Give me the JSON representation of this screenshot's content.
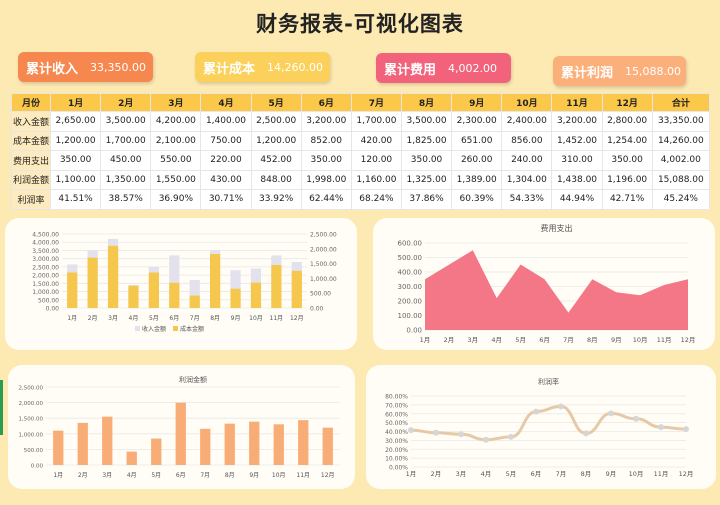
{
  "title": "财务报表-可视化图表",
  "kpis": [
    {
      "label": "累计收入",
      "value": "33,350.00"
    },
    {
      "label": "累计成本",
      "value": "14,260.00"
    },
    {
      "label": "累计费用",
      "value": "4,002.00"
    },
    {
      "label": "累计利润",
      "value": "15,088.00"
    }
  ],
  "table": {
    "headers": [
      "月份",
      "1月",
      "2月",
      "3月",
      "4月",
      "5月",
      "6月",
      "7月",
      "8月",
      "9月",
      "10月",
      "11月",
      "12月",
      "合计"
    ],
    "rows": [
      {
        "label": "收入金额",
        "cells": [
          "2,650.00",
          "3,500.00",
          "4,200.00",
          "1,400.00",
          "2,500.00",
          "3,200.00",
          "1,700.00",
          "3,500.00",
          "2,300.00",
          "2,400.00",
          "3,200.00",
          "2,800.00",
          "33,350.00"
        ]
      },
      {
        "label": "成本金额",
        "cells": [
          "1,200.00",
          "1,700.00",
          "2,100.00",
          "750.00",
          "1,200.00",
          "852.00",
          "420.00",
          "1,825.00",
          "651.00",
          "856.00",
          "1,452.00",
          "1,254.00",
          "14,260.00"
        ]
      },
      {
        "label": "费用支出",
        "cells": [
          "350.00",
          "450.00",
          "550.00",
          "220.00",
          "452.00",
          "350.00",
          "120.00",
          "350.00",
          "260.00",
          "240.00",
          "310.00",
          "350.00",
          "4,002.00"
        ]
      },
      {
        "label": "利润金额",
        "cells": [
          "1,100.00",
          "1,350.00",
          "1,550.00",
          "430.00",
          "848.00",
          "1,998.00",
          "1,160.00",
          "1,325.00",
          "1,389.00",
          "1,304.00",
          "1,438.00",
          "1,196.00",
          "15,088.00"
        ]
      },
      {
        "label": "利润率",
        "cells": [
          "41.51%",
          "38.57%",
          "36.90%",
          "30.71%",
          "33.92%",
          "62.44%",
          "68.24%",
          "37.86%",
          "60.39%",
          "54.33%",
          "44.94%",
          "42.71%",
          "45.24%"
        ]
      }
    ]
  },
  "chart_data": [
    {
      "type": "bar",
      "title": "",
      "categories": [
        "1月",
        "2月",
        "3月",
        "4月",
        "5月",
        "6月",
        "7月",
        "8月",
        "9月",
        "10月",
        "11月",
        "12月"
      ],
      "series": [
        {
          "name": "收入金额",
          "values": [
            2650,
            3500,
            4200,
            1400,
            2500,
            3200,
            1700,
            3500,
            2300,
            2400,
            3200,
            2800
          ],
          "axis": "left",
          "color": "#e3e1ec"
        },
        {
          "name": "成本金额",
          "values": [
            1200,
            1700,
            2100,
            750,
            1200,
            852,
            420,
            1825,
            651,
            856,
            1452,
            1254
          ],
          "axis": "right",
          "color": "#f5c84d"
        }
      ],
      "left_ticks": [
        "0.00",
        "500.00",
        "1,000.00",
        "1,500.00",
        "2,000.00",
        "2,500.00",
        "3,000.00",
        "3,500.00",
        "4,000.00",
        "4,500.00"
      ],
      "left_ylim": [
        0,
        4500
      ],
      "right_ticks": [
        "0.00",
        "500.00",
        "1,000.00",
        "1,500.00",
        "2,000.00",
        "2,500.00"
      ],
      "right_ylim": [
        0,
        2500
      ],
      "legend": "bottom"
    },
    {
      "type": "area",
      "title": "费用支出",
      "categories": [
        "1月",
        "2月",
        "3月",
        "4月",
        "5月",
        "6月",
        "7月",
        "8月",
        "9月",
        "10月",
        "11月",
        "12月"
      ],
      "values": [
        350,
        450,
        550,
        220,
        452,
        350,
        120,
        350,
        260,
        240,
        310,
        350
      ],
      "ylim": [
        0,
        600
      ],
      "ticks": [
        "0.00",
        "100.00",
        "200.00",
        "300.00",
        "400.00",
        "500.00",
        "600.00"
      ],
      "color": "#f2707f"
    },
    {
      "type": "bar",
      "title": "利润金额",
      "categories": [
        "1月",
        "2月",
        "3月",
        "4月",
        "5月",
        "6月",
        "7月",
        "8月",
        "9月",
        "10月",
        "11月",
        "12月"
      ],
      "values": [
        1100,
        1350,
        1550,
        430,
        848,
        1998,
        1160,
        1325,
        1389,
        1304,
        1438,
        1196
      ],
      "ylim": [
        0,
        2500
      ],
      "ticks": [
        "0.00",
        "500.00",
        "1,000.00",
        "1,500.00",
        "2,000.00",
        "2,500.00"
      ],
      "color": "#f8ac76"
    },
    {
      "type": "line",
      "title": "利润率",
      "categories": [
        "1月",
        "2月",
        "3月",
        "4月",
        "5月",
        "6月",
        "7月",
        "8月",
        "9月",
        "10月",
        "11月",
        "12月"
      ],
      "values": [
        41.51,
        38.57,
        36.9,
        30.71,
        33.92,
        62.44,
        68.24,
        37.86,
        60.39,
        54.33,
        44.94,
        42.71
      ],
      "ylim": [
        0,
        80
      ],
      "ticks": [
        "0.00%",
        "10.00%",
        "20.00%",
        "30.00%",
        "40.00%",
        "50.00%",
        "60.00%",
        "70.00%",
        "80.00%"
      ],
      "color": "#e6c9a6"
    }
  ]
}
